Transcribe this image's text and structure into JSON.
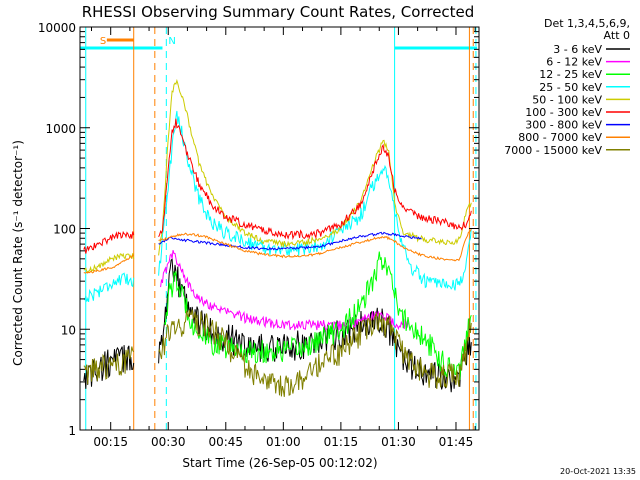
{
  "chart_data": {
    "type": "line",
    "title": "RHESSI Observing Summary Count Rates, Corrected",
    "xlabel": "Start Time (26-Sep-05 00:12:02)",
    "ylabel": "Corrected Count Rate (s⁻¹ detector⁻¹)",
    "yscale": "log",
    "ylim": [
      1,
      10000
    ],
    "xlim_minutes": [
      7,
      111
    ],
    "x_ticks": [
      {
        "m": 15,
        "label": "00:15"
      },
      {
        "m": 30,
        "label": "00:30"
      },
      {
        "m": 45,
        "label": "00:45"
      },
      {
        "m": 60,
        "label": "01:00"
      },
      {
        "m": 75,
        "label": "01:15"
      },
      {
        "m": 90,
        "label": "01:30"
      },
      {
        "m": 105,
        "label": "01:45"
      }
    ],
    "y_ticks": [
      {
        "v": 1,
        "label": "1"
      },
      {
        "v": 10,
        "label": "10"
      },
      {
        "v": 100,
        "label": "100"
      },
      {
        "v": 1000,
        "label": "1000"
      },
      {
        "v": 10000,
        "label": "10000"
      }
    ],
    "legend_header": [
      "Det 1,3,4,5,6,9,",
      "Att 0"
    ],
    "legend_position": "right",
    "series": [
      {
        "name": "3 - 6 keV",
        "color": "#000000",
        "noise": 0.15,
        "points": [
          [
            8,
            3.5
          ],
          [
            12,
            4
          ],
          [
            16,
            5
          ],
          [
            27.5,
            5.5
          ],
          [
            29,
            12
          ],
          [
            31,
            40
          ],
          [
            34,
            22
          ],
          [
            38,
            12
          ],
          [
            42,
            9
          ],
          [
            46,
            8
          ],
          [
            50,
            7
          ],
          [
            55,
            6.5
          ],
          [
            60,
            6.5
          ],
          [
            65,
            7
          ],
          [
            70,
            8
          ],
          [
            75,
            9
          ],
          [
            80,
            11
          ],
          [
            84,
            12
          ],
          [
            86,
            12
          ],
          [
            88,
            9
          ],
          [
            90,
            6
          ],
          [
            94,
            4
          ],
          [
            98,
            3.5
          ],
          [
            103,
            3.2
          ],
          [
            106,
            3.5
          ],
          [
            107.5,
            5.5
          ],
          [
            109,
            7
          ]
        ]
      },
      {
        "name": "6 - 12 keV",
        "color": "#ff00ff",
        "noise": 0.05,
        "points": [
          [
            28,
            27
          ],
          [
            30,
            45
          ],
          [
            31.5,
            60
          ],
          [
            33,
            40
          ],
          [
            36,
            25
          ],
          [
            40,
            18
          ],
          [
            45,
            15
          ],
          [
            50,
            13
          ],
          [
            55,
            12
          ],
          [
            60,
            11
          ],
          [
            65,
            11
          ],
          [
            70,
            11
          ],
          [
            75,
            11
          ],
          [
            80,
            12
          ],
          [
            84,
            14
          ],
          [
            86,
            14
          ],
          [
            88,
            12
          ],
          [
            90,
            11
          ],
          [
            92.5,
            11
          ]
        ]
      },
      {
        "name": "12 - 25 keV",
        "color": "#00ff00",
        "noise": 0.12,
        "points": [
          [
            29,
            12
          ],
          [
            30.5,
            25
          ],
          [
            32,
            30
          ],
          [
            34,
            20
          ],
          [
            37,
            10
          ],
          [
            42,
            7
          ],
          [
            46,
            6.5
          ],
          [
            50,
            6
          ],
          [
            55,
            6
          ],
          [
            60,
            6
          ],
          [
            65,
            6.5
          ],
          [
            70,
            8
          ],
          [
            75,
            10
          ],
          [
            80,
            16
          ],
          [
            83,
            28
          ],
          [
            85,
            45
          ],
          [
            86.5,
            52
          ],
          [
            88,
            32
          ],
          [
            90,
            15
          ],
          [
            94,
            10
          ],
          [
            98,
            7
          ],
          [
            102,
            4.5
          ],
          [
            106,
            4
          ],
          [
            107.5,
            8
          ],
          [
            109,
            15
          ]
        ]
      },
      {
        "name": "25 - 50 keV",
        "color": "#00ffff",
        "noise": 0.07,
        "points": [
          [
            8,
            20
          ],
          [
            11,
            23
          ],
          [
            14,
            27
          ],
          [
            16,
            30
          ],
          [
            27.5,
            33
          ],
          [
            29,
            130
          ],
          [
            31,
            600
          ],
          [
            32,
            1400
          ],
          [
            33,
            1100
          ],
          [
            35,
            500
          ],
          [
            38,
            200
          ],
          [
            41,
            120
          ],
          [
            45,
            90
          ],
          [
            50,
            75
          ],
          [
            55,
            65
          ],
          [
            60,
            62
          ],
          [
            65,
            62
          ],
          [
            70,
            70
          ],
          [
            75,
            95
          ],
          [
            80,
            130
          ],
          [
            82,
            200
          ],
          [
            84,
            300
          ],
          [
            86,
            400
          ],
          [
            88,
            280
          ],
          [
            90,
            95
          ],
          [
            93,
            42
          ],
          [
            97,
            30
          ],
          [
            101,
            27
          ],
          [
            104,
            26
          ],
          [
            106,
            28
          ],
          [
            107.5,
            45
          ],
          [
            109,
            100
          ]
        ]
      },
      {
        "name": "50 - 100 keV",
        "color": "#cccc00",
        "noise": 0.03,
        "points": [
          [
            8,
            38
          ],
          [
            12,
            42
          ],
          [
            16,
            52
          ],
          [
            27.5,
            55
          ],
          [
            28.5,
            100
          ],
          [
            30,
            800
          ],
          [
            31,
            2200
          ],
          [
            31.8,
            3000
          ],
          [
            33,
            2400
          ],
          [
            35,
            1300
          ],
          [
            38,
            450
          ],
          [
            41,
            230
          ],
          [
            45,
            130
          ],
          [
            50,
            90
          ],
          [
            55,
            75
          ],
          [
            60,
            70
          ],
          [
            65,
            72
          ],
          [
            70,
            80
          ],
          [
            75,
            100
          ],
          [
            80,
            180
          ],
          [
            82,
            300
          ],
          [
            84,
            500
          ],
          [
            86,
            730
          ],
          [
            87.5,
            600
          ],
          [
            89,
            180
          ],
          [
            91,
            95
          ],
          [
            95,
            80
          ],
          [
            100,
            75
          ],
          [
            104,
            70
          ],
          [
            106,
            80
          ],
          [
            107.5,
            140
          ],
          [
            109,
            180
          ]
        ]
      },
      {
        "name": "100 - 300 keV",
        "color": "#ff0000",
        "noise": 0.04,
        "points": [
          [
            8,
            60
          ],
          [
            12,
            70
          ],
          [
            16,
            85
          ],
          [
            27.5,
            88
          ],
          [
            28.5,
            90
          ],
          [
            30,
            400
          ],
          [
            31,
            900
          ],
          [
            32,
            1150
          ],
          [
            33,
            900
          ],
          [
            35,
            550
          ],
          [
            38,
            280
          ],
          [
            41,
            180
          ],
          [
            45,
            130
          ],
          [
            50,
            110
          ],
          [
            55,
            95
          ],
          [
            60,
            88
          ],
          [
            65,
            87
          ],
          [
            70,
            90
          ],
          [
            75,
            110
          ],
          [
            80,
            170
          ],
          [
            82,
            260
          ],
          [
            84,
            430
          ],
          [
            86,
            620
          ],
          [
            87.5,
            520
          ],
          [
            89,
            250
          ],
          [
            91,
            170
          ],
          [
            95,
            130
          ],
          [
            100,
            120
          ],
          [
            104,
            110
          ],
          [
            106,
            100
          ],
          [
            107.5,
            110
          ],
          [
            109,
            150
          ]
        ]
      },
      {
        "name": "300 - 800 keV",
        "color": "#0000ff",
        "noise": 0.012,
        "points": [
          [
            27.5,
            70
          ],
          [
            30,
            80
          ],
          [
            32,
            78
          ],
          [
            35,
            76
          ],
          [
            40,
            72
          ],
          [
            45,
            68
          ],
          [
            50,
            65
          ],
          [
            55,
            63
          ],
          [
            60,
            63
          ],
          [
            65,
            64
          ],
          [
            70,
            67
          ],
          [
            75,
            75
          ],
          [
            80,
            83
          ],
          [
            84,
            88
          ],
          [
            86,
            90
          ],
          [
            88,
            88
          ],
          [
            90,
            86
          ],
          [
            93,
            82
          ],
          [
            96,
            80
          ]
        ]
      },
      {
        "name": "800 - 7000 keV",
        "color": "#ff8000",
        "noise": 0.012,
        "points": [
          [
            8,
            36
          ],
          [
            12,
            38
          ],
          [
            16,
            42
          ],
          [
            27.5,
            75
          ],
          [
            30,
            80
          ],
          [
            33,
            87
          ],
          [
            36,
            88
          ],
          [
            40,
            82
          ],
          [
            45,
            70
          ],
          [
            50,
            60
          ],
          [
            55,
            55
          ],
          [
            60,
            53
          ],
          [
            65,
            53
          ],
          [
            70,
            57
          ],
          [
            75,
            65
          ],
          [
            80,
            73
          ],
          [
            84,
            80
          ],
          [
            86,
            82
          ],
          [
            88,
            80
          ],
          [
            90,
            70
          ],
          [
            93,
            60
          ],
          [
            97,
            53
          ],
          [
            101,
            50
          ],
          [
            104,
            48
          ],
          [
            106,
            50
          ],
          [
            107.5,
            80
          ],
          [
            109,
            100
          ]
        ]
      },
      {
        "name": "7000 - 15000 keV",
        "color": "#808000",
        "noise": 0.13,
        "points": [
          [
            8,
            3.5
          ],
          [
            12,
            4
          ],
          [
            16,
            4.5
          ],
          [
            28,
            6
          ],
          [
            30,
            9
          ],
          [
            33,
            11
          ],
          [
            36,
            12
          ],
          [
            40,
            11
          ],
          [
            44,
            8
          ],
          [
            48,
            5
          ],
          [
            52,
            3.5
          ],
          [
            56,
            2.8
          ],
          [
            60,
            2.8
          ],
          [
            65,
            3.2
          ],
          [
            70,
            4.5
          ],
          [
            75,
            6
          ],
          [
            80,
            9
          ],
          [
            84,
            11
          ],
          [
            86,
            11
          ],
          [
            88,
            10
          ],
          [
            90,
            7
          ],
          [
            94,
            4.5
          ],
          [
            98,
            3.5
          ],
          [
            102,
            3.3
          ],
          [
            106,
            3.5
          ],
          [
            107.5,
            6
          ],
          [
            109,
            12
          ]
        ]
      }
    ],
    "annotations": {
      "flag_labels": [
        {
          "text": "S",
          "m": 13
        },
        {
          "text": "N",
          "m": 31
        }
      ],
      "cyan_bars": [
        [
          7,
          28.5
        ],
        [
          89,
          110.5
        ]
      ],
      "orange_bars": [
        [
          14,
          21
        ]
      ],
      "orange_solid": [
        21,
        108.5
      ],
      "orange_dashed": [
        26.5,
        109.5
      ],
      "cyan_solid": [
        8.5,
        89
      ],
      "cyan_dashed": [
        29.5,
        110.2
      ]
    },
    "footer_date": "20-Oct-2021 13:35"
  }
}
